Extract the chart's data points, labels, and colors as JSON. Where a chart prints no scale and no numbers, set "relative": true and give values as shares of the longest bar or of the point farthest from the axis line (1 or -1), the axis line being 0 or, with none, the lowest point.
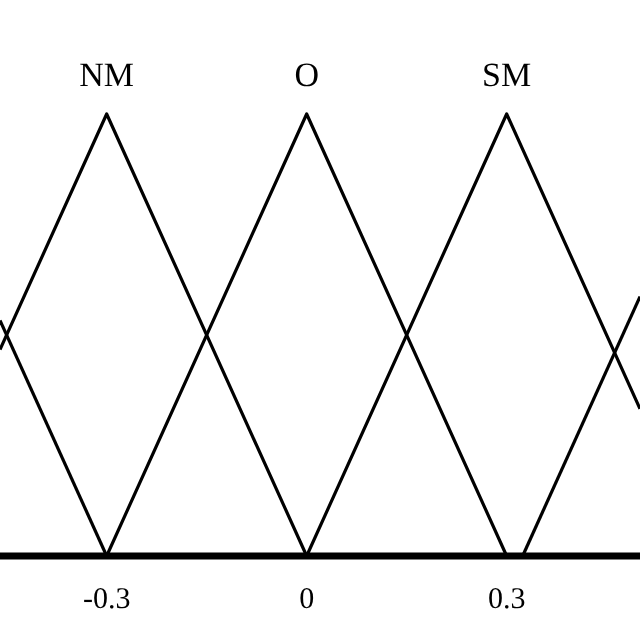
{
  "chart_data": {
    "type": "line",
    "relative": true,
    "xlim": [
      -0.46,
      0.5
    ],
    "xticks": [
      -0.3,
      0,
      0.3
    ],
    "grid": false,
    "marker": "none",
    "line_style": "solid",
    "series": [
      {
        "color": "#000000",
        "x": [
          -0.46,
          -0.3
        ],
        "values": [
          0.533,
          0
        ]
      },
      {
        "name": "NM",
        "color": "#000000",
        "x": [
          -0.46,
          -0.3,
          0
        ],
        "values": [
          0.467,
          1,
          0
        ]
      },
      {
        "name": "O",
        "color": "#000000",
        "x": [
          -0.3,
          0,
          0.3
        ],
        "values": [
          0,
          1,
          0
        ]
      },
      {
        "name": "SM",
        "color": "#000000",
        "x": [
          0,
          0.3,
          0.5
        ],
        "values": [
          0,
          1,
          0.333
        ]
      },
      {
        "color": "#000000",
        "x": [
          0.324,
          0.5
        ],
        "values": [
          0,
          0.587
        ]
      }
    ]
  }
}
